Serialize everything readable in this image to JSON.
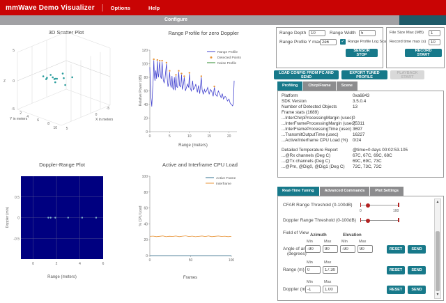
{
  "header": {
    "title": "mmWave Demo Visualizer",
    "menus": {
      "options": "Options",
      "help": "Help"
    },
    "nav_tab": "Configure"
  },
  "colors": {
    "accent_teal": "#17798a",
    "dark_teal_corner": "#1e5a68",
    "header_red": "#c90404",
    "nav_gray": "#a1a1a4",
    "slider_red": "#b22222",
    "doppler_plot_bg": "#000080",
    "range_profile_line": "#4343cf",
    "detected_points": "#e8953a",
    "noise_profile": "#2e8b2e",
    "interframe_line": "#e8953a",
    "active_frame_line": "#31708f"
  },
  "sensor_config": {
    "range_depth_label": "Range Depth",
    "range_depth": "10",
    "range_width_label": "Range Width",
    "range_width": "5",
    "range_profile_ymax_label": "Range Profile Y max",
    "range_profile_ymax": "2e6",
    "log_scale_label": "Range Profile Log Scale",
    "log_scale_checked": "✓",
    "sensor_stop_label": "SENSOR STOP"
  },
  "record": {
    "file_size_label": "File Size Max (MB)",
    "file_size": "1",
    "record_time_label": "Record time max (s)",
    "record_time": "10",
    "record_start_label": "RECORD START"
  },
  "actions": {
    "load_config": "LOAD CONFIG FROM PC AND SEND",
    "export_profile": "EXPORT TUNED PROFILE",
    "playback": "PLAYBACK START"
  },
  "profiling": {
    "tabs": [
      "Profiling",
      "Chirp/Frame",
      "Scene"
    ],
    "active_index": 0,
    "rows": [
      {
        "label": "Platform",
        "value": "0xa6843"
      },
      {
        "label": "SDK Version",
        "value": "3.5.0.4"
      },
      {
        "label": "Number of Detected Objects",
        "value": "13"
      },
      {
        "label": "Frame stats (1689)",
        "value": ""
      },
      {
        "label": "...InterChirpProcessingMargin (usec)",
        "value": "0"
      },
      {
        "label": "...InterFrameProcessingMargin (usec)",
        "value": "75311"
      },
      {
        "label": "...InterFrameProcessingTime (usec)",
        "value": "3697"
      },
      {
        "label": "...TransmitOutputTime (usec)",
        "value": "16227"
      },
      {
        "label": "...Active/Interframe CPU Load (%)",
        "value": "0/24"
      },
      {
        "label": "",
        "value": ""
      },
      {
        "label": "Detailed Temperature Report",
        "value": "@time=0 days 00:02:53.105"
      },
      {
        "label": "...@Rx channels (Deg C)",
        "value": "67C, 67C, 69C, 68C"
      },
      {
        "label": "...@Tx channels (Deg C)",
        "value": "69C, 69C, 73C"
      },
      {
        "label": "...@Pm, @Dig0, @Dig1 (Deg C)",
        "value": "72C, 73C, 72C"
      }
    ]
  },
  "tuning": {
    "tabs": [
      "Real-Time Tuning",
      "Advanced Commands",
      "Plot Settings"
    ],
    "active_index": 0,
    "cfar_label": "CFAR Range Threshold (0-100dB)",
    "cfar_scale_min": "0",
    "cfar_scale_max": "100",
    "doppler_threshold_label": "Doppler Range Threshold (0-100dB)",
    "fov_label": "Field of View",
    "azimuth_label": "Azimuth",
    "elevation_label": "Elevation",
    "min_label": "Min",
    "max_label": "Max",
    "aoa_label_line1": "Angle of arrival",
    "aoa_label_line2": "(degrees)",
    "aoa_values": [
      "-90",
      "90",
      "-90",
      "90"
    ],
    "range_label": "Range (m)",
    "range_values": [
      "0",
      "17.30"
    ],
    "doppler_label": "Doppler (m/s)",
    "doppler_values": [
      "-1",
      "1.00"
    ],
    "reset_label": "RESET",
    "send_label": "SEND"
  },
  "chart_data": [
    {
      "id": "scatter3d",
      "type": "scatter",
      "projection": "3d",
      "title": "3D Scatter Plot",
      "xlabel": "X in meters",
      "ylabel": "Y in meters",
      "zlabel": "Z",
      "x_ticks": [
        5,
        0,
        -5
      ],
      "y_ticks": [
        2,
        4,
        6,
        8,
        10
      ],
      "z_ticks": [
        5,
        0,
        -5
      ],
      "xlim": [
        5,
        -5
      ],
      "ylim": [
        0,
        10
      ],
      "zlim": [
        -5,
        5
      ],
      "points": [
        [
          1.5,
          2.0,
          0.1
        ],
        [
          1.1,
          2.4,
          -0.2
        ],
        [
          0.7,
          2.8,
          0.3
        ],
        [
          1.8,
          3.0,
          0.0
        ],
        [
          0.2,
          3.3,
          -0.4
        ],
        [
          1.0,
          3.6,
          0.2
        ],
        [
          0.5,
          4.0,
          -0.1
        ],
        [
          -0.5,
          4.2,
          0.5
        ],
        [
          1.3,
          4.5,
          -0.3
        ],
        [
          0.0,
          5.0,
          0.1
        ],
        [
          2.2,
          5.3,
          0.8
        ],
        [
          -1.2,
          5.6,
          0.0
        ],
        [
          0.6,
          6.0,
          -0.6
        ]
      ],
      "point_color": "#2a9d9d"
    },
    {
      "id": "range_profile",
      "type": "line",
      "title": "Range Profile for zero Doppler",
      "xlabel": "Range (meters)",
      "ylabel": "Relative Power (dB)",
      "xlim": [
        0,
        22
      ],
      "ylim": [
        0,
        120
      ],
      "x_ticks": [
        0,
        5,
        10,
        15,
        20
      ],
      "y_ticks": [
        0,
        20,
        40,
        60,
        80,
        100,
        120
      ],
      "legend": [
        {
          "name": "Range Profile",
          "color": "#4343cf",
          "marker": "line"
        },
        {
          "name": "Detected Points",
          "color": "#e8953a",
          "marker": "dot"
        },
        {
          "name": "Noise Profile",
          "color": "#2e8b2e",
          "marker": "line"
        }
      ],
      "line": [
        [
          0,
          95
        ],
        [
          0.25,
          52
        ],
        [
          0.5,
          37
        ],
        [
          0.7,
          62
        ],
        [
          0.9,
          82
        ],
        [
          1.0,
          105
        ],
        [
          1.15,
          84
        ],
        [
          1.3,
          75
        ],
        [
          1.5,
          90
        ],
        [
          1.7,
          78
        ],
        [
          1.9,
          104
        ],
        [
          2.05,
          86
        ],
        [
          2.2,
          80
        ],
        [
          2.35,
          95
        ],
        [
          2.5,
          103
        ],
        [
          2.7,
          82
        ],
        [
          2.9,
          78
        ],
        [
          3.1,
          103
        ],
        [
          3.25,
          88
        ],
        [
          3.4,
          76
        ],
        [
          3.6,
          72
        ],
        [
          3.8,
          76
        ],
        [
          4.0,
          88
        ],
        [
          4.2,
          100
        ],
        [
          4.4,
          78
        ],
        [
          4.6,
          66
        ],
        [
          4.8,
          72
        ],
        [
          5.0,
          88
        ],
        [
          5.2,
          70
        ],
        [
          5.4,
          65
        ],
        [
          5.6,
          82
        ],
        [
          5.8,
          64
        ],
        [
          6.0,
          62
        ],
        [
          6.2,
          80
        ],
        [
          6.4,
          61
        ],
        [
          6.6,
          82
        ],
        [
          6.8,
          66
        ],
        [
          7.0,
          65
        ],
        [
          7.3,
          88
        ],
        [
          7.5,
          68
        ],
        [
          7.8,
          66
        ],
        [
          8.0,
          84
        ],
        [
          8.2,
          62
        ],
        [
          8.5,
          70
        ],
        [
          8.7,
          80
        ],
        [
          9.0,
          60
        ],
        [
          9.2,
          64
        ],
        [
          9.5,
          70
        ],
        [
          9.8,
          65
        ],
        [
          10.0,
          85
        ],
        [
          10.2,
          64
        ],
        [
          10.5,
          60
        ],
        [
          10.8,
          75
        ],
        [
          11.0,
          62
        ],
        [
          11.3,
          64
        ],
        [
          11.6,
          70
        ],
        [
          12.0,
          58
        ],
        [
          12.3,
          68
        ],
        [
          12.6,
          56
        ],
        [
          13.0,
          80
        ],
        [
          13.2,
          62
        ],
        [
          13.5,
          55
        ],
        [
          13.8,
          62
        ],
        [
          14.0,
          58
        ],
        [
          14.3,
          60
        ],
        [
          14.6,
          65
        ],
        [
          15.0,
          55
        ],
        [
          15.3,
          62
        ],
        [
          15.6,
          60
        ],
        [
          16.0,
          52
        ],
        [
          16.3,
          65
        ],
        [
          16.6,
          55
        ],
        [
          17.0,
          52
        ],
        [
          17.3,
          60
        ],
        [
          17.6,
          56
        ],
        [
          18.0,
          50
        ],
        [
          18.3,
          56
        ],
        [
          18.6,
          48
        ],
        [
          19.0,
          52
        ],
        [
          19.3,
          50
        ],
        [
          19.6,
          45
        ],
        [
          20.0,
          48
        ],
        [
          20.3,
          42
        ],
        [
          20.6,
          40
        ],
        [
          20.9,
          38
        ],
        [
          21.1,
          42
        ],
        [
          21.3,
          75
        ]
      ],
      "detected": [
        [
          1.0,
          105
        ],
        [
          1.9,
          104
        ],
        [
          2.5,
          103
        ],
        [
          3.1,
          103
        ],
        [
          4.2,
          100
        ],
        [
          5.0,
          88
        ],
        [
          6.6,
          82
        ],
        [
          7.3,
          88
        ],
        [
          8.0,
          84
        ],
        [
          8.7,
          80
        ],
        [
          10.0,
          85
        ],
        [
          13.0,
          80
        ],
        [
          16.3,
          65
        ]
      ]
    },
    {
      "id": "doppler_range",
      "type": "scatter",
      "title": "Doppler-Range Plot",
      "xlabel": "Range (meters)",
      "ylabel": "Doppler (m/s)",
      "xlim": [
        -1.05,
        6
      ],
      "ylim": [
        -1,
        1
      ],
      "x_ticks": [
        0,
        2,
        4,
        6
      ],
      "y_ticks": [
        0.5,
        0,
        -0.5
      ],
      "bg": "#000080",
      "grid": true,
      "points_x": [
        1.3,
        1.5,
        1.9,
        3.0,
        4.2,
        5.4
      ],
      "points_y": [
        0,
        0,
        0,
        0,
        0,
        0
      ],
      "point_color": "#86b9cc"
    },
    {
      "id": "cpu_load",
      "type": "line",
      "title": "Active and Interframe  CPU Load",
      "xlabel": "Frames",
      "ylabel": "% CPU Load",
      "xlim": [
        0,
        100
      ],
      "ylim": [
        0,
        100
      ],
      "x_ticks": [
        0,
        50,
        100
      ],
      "y_ticks": [
        0,
        20,
        40,
        60,
        80,
        100
      ],
      "legend": [
        {
          "name": "Active Frame",
          "color": "#31708f",
          "marker": "line"
        },
        {
          "name": "Interframe",
          "color": "#e8953a",
          "marker": "line"
        }
      ],
      "series": [
        {
          "name": "Active Frame",
          "color": "#31708f",
          "y": [
            0,
            0,
            0,
            0,
            0,
            0,
            0,
            0,
            0,
            0,
            0,
            0,
            0,
            0,
            0,
            0,
            0,
            0,
            0,
            0,
            0,
            0,
            0,
            0,
            0,
            0
          ]
        },
        {
          "name": "Interframe",
          "color": "#e8953a",
          "y": [
            24.2,
            24.6,
            23.9,
            24.3,
            24.8,
            23.8,
            24.4,
            24.1,
            24.7,
            23.9,
            24.5,
            24.9,
            24.0,
            24.6,
            23.8,
            24.2,
            24.7,
            24.0,
            24.8,
            23.9,
            24.3,
            24.7,
            24.1,
            24.5,
            23.9,
            24.2
          ]
        }
      ]
    }
  ]
}
